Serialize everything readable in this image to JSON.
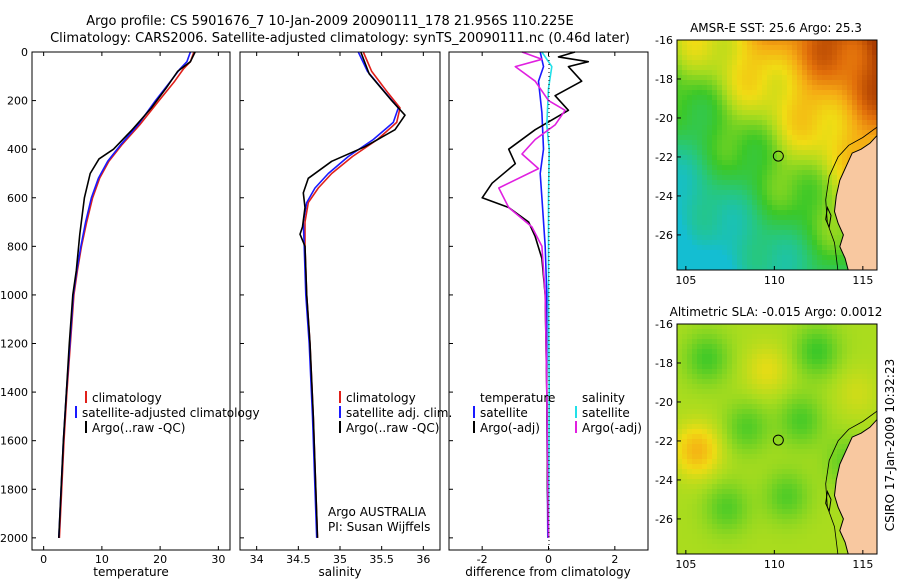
{
  "title_line1": "Argo profile: CS 5901676_7 10-Jan-2009 20090111_178 21.956S 110.225E",
  "title_line2": "Climatology: CARS2006. Satellite-adjusted climatology: synTS_20090111.nc (0.46d later)",
  "side_label": "CSIRO 17-Jan-2009 10:32:23",
  "colors": {
    "climatology": "#e0201a",
    "satellite": "#1a1aff",
    "argo": "#000000",
    "cyan": "#22e0e8",
    "magenta": "#e020e0",
    "land": "#f8c8a0"
  },
  "chart_data": [
    {
      "type": "line",
      "id": "temperature",
      "xlabel": "temperature",
      "ylabel": "",
      "xlim": [
        -2,
        32
      ],
      "ylim": [
        2050,
        0
      ],
      "xticks": [
        "0",
        "10",
        "20",
        "30"
      ],
      "xtick_values": [
        0,
        10,
        20,
        30
      ],
      "yticks": [
        "0",
        "200",
        "400",
        "600",
        "800",
        "1000",
        "1200",
        "1400",
        "1600",
        "1800",
        "2000"
      ],
      "ytick_values": [
        0,
        200,
        400,
        600,
        800,
        1000,
        1200,
        1400,
        1600,
        1800,
        2000
      ],
      "legend": [
        "climatology",
        "satellite-adjusted climatology",
        "Argo(..raw -QC)"
      ],
      "series": [
        {
          "name": "climatology",
          "color": "climatology",
          "points": [
            [
              25.8,
              0
            ],
            [
              25.2,
              40
            ],
            [
              24,
              70
            ],
            [
              22.5,
              120
            ],
            [
              19.8,
              200
            ],
            [
              16.5,
              300
            ],
            [
              13.5,
              380
            ],
            [
              11.2,
              450
            ],
            [
              9.6,
              520
            ],
            [
              8.4,
              600
            ],
            [
              7.4,
              700
            ],
            [
              6.5,
              800
            ],
            [
              5.8,
              900
            ],
            [
              5.2,
              1000
            ],
            [
              4.6,
              1200
            ],
            [
              4.0,
              1400
            ],
            [
              3.5,
              1600
            ],
            [
              3.1,
              1800
            ],
            [
              2.7,
              2000
            ]
          ]
        },
        {
          "name": "satellite-adjusted climatology",
          "color": "satellite",
          "points": [
            [
              25.2,
              0
            ],
            [
              24.6,
              40
            ],
            [
              23.4,
              70
            ],
            [
              21.8,
              120
            ],
            [
              19.2,
              200
            ],
            [
              16.2,
              300
            ],
            [
              13.3,
              380
            ],
            [
              11.0,
              450
            ],
            [
              9.4,
              520
            ],
            [
              8.2,
              600
            ],
            [
              7.2,
              700
            ],
            [
              6.4,
              800
            ],
            [
              5.7,
              900
            ],
            [
              5.1,
              1000
            ],
            [
              4.5,
              1200
            ],
            [
              3.9,
              1400
            ],
            [
              3.4,
              1600
            ],
            [
              3.0,
              1800
            ],
            [
              2.6,
              2000
            ]
          ]
        },
        {
          "name": "Argo(..raw -QC)",
          "color": "argo",
          "points": [
            [
              26.0,
              0
            ],
            [
              25.2,
              40
            ],
            [
              23.0,
              80
            ],
            [
              21.0,
              150
            ],
            [
              18.5,
              230
            ],
            [
              15.2,
              320
            ],
            [
              12.0,
              400
            ],
            [
              9.5,
              440
            ],
            [
              8.0,
              500
            ],
            [
              7.0,
              600
            ],
            [
              6.2,
              750
            ],
            [
              5.6,
              900
            ],
            [
              5.0,
              1000
            ],
            [
              4.4,
              1200
            ],
            [
              3.9,
              1400
            ],
            [
              3.4,
              1600
            ],
            [
              3.0,
              1800
            ],
            [
              2.6,
              2000
            ]
          ]
        }
      ]
    },
    {
      "type": "line",
      "id": "salinity",
      "xlabel": "salinity",
      "xlim": [
        33.8,
        36.2
      ],
      "ylim": [
        2050,
        0
      ],
      "xticks": [
        "34",
        "34.5",
        "35",
        "35.5",
        "36"
      ],
      "xtick_values": [
        34,
        34.5,
        35,
        35.5,
        36
      ],
      "legend": [
        "climatology",
        "satellite adj. clim.",
        "Argo(..raw -QC)"
      ],
      "annotation_lines": [
        "Argo AUSTRALIA",
        "PI: Susan Wijffels"
      ],
      "series": [
        {
          "name": "climatology",
          "color": "climatology",
          "points": [
            [
              35.28,
              0
            ],
            [
              35.38,
              80
            ],
            [
              35.58,
              170
            ],
            [
              35.72,
              230
            ],
            [
              35.68,
              290
            ],
            [
              35.45,
              360
            ],
            [
              35.15,
              430
            ],
            [
              34.9,
              500
            ],
            [
              34.74,
              560
            ],
            [
              34.62,
              620
            ],
            [
              34.58,
              700
            ],
            [
              34.58,
              800
            ],
            [
              34.6,
              1000
            ],
            [
              34.64,
              1200
            ],
            [
              34.68,
              1500
            ],
            [
              34.71,
              1800
            ],
            [
              34.73,
              2000
            ]
          ]
        },
        {
          "name": "satellite adj. clim.",
          "color": "satellite",
          "points": [
            [
              35.22,
              0
            ],
            [
              35.33,
              80
            ],
            [
              35.55,
              170
            ],
            [
              35.7,
              230
            ],
            [
              35.64,
              290
            ],
            [
              35.4,
              360
            ],
            [
              35.1,
              430
            ],
            [
              34.86,
              500
            ],
            [
              34.7,
              560
            ],
            [
              34.6,
              620
            ],
            [
              34.56,
              700
            ],
            [
              34.57,
              800
            ],
            [
              34.59,
              1000
            ],
            [
              34.63,
              1200
            ],
            [
              34.67,
              1500
            ],
            [
              34.7,
              1800
            ],
            [
              34.72,
              2000
            ]
          ]
        },
        {
          "name": "Argo(..raw -QC)",
          "color": "argo",
          "points": [
            [
              35.25,
              0
            ],
            [
              35.35,
              90
            ],
            [
              35.62,
              200
            ],
            [
              35.78,
              260
            ],
            [
              35.66,
              320
            ],
            [
              35.3,
              390
            ],
            [
              34.9,
              450
            ],
            [
              34.62,
              520
            ],
            [
              34.56,
              580
            ],
            [
              34.58,
              640
            ],
            [
              34.55,
              720
            ],
            [
              34.52,
              750
            ],
            [
              34.58,
              800
            ],
            [
              34.6,
              1000
            ],
            [
              34.64,
              1200
            ],
            [
              34.68,
              1500
            ],
            [
              34.71,
              1800
            ],
            [
              34.73,
              2000
            ]
          ]
        }
      ]
    },
    {
      "type": "line",
      "id": "difference",
      "xlabel": "difference from climatology",
      "xlim": [
        -3,
        3
      ],
      "ylim": [
        2050,
        0
      ],
      "xticks": [
        "-2",
        "0",
        "2"
      ],
      "xtick_values": [
        -2,
        0,
        2
      ],
      "legend_left": [
        "temperature",
        "satellite",
        "Argo(-adj)"
      ],
      "legend_right": [
        "salinity",
        "satellite",
        "Argo(-adj)"
      ],
      "series": [
        {
          "name": "temperature satellite",
          "color": "satellite",
          "points": [
            [
              -0.25,
              0
            ],
            [
              -0.15,
              60
            ],
            [
              -0.3,
              120
            ],
            [
              -0.2,
              250
            ],
            [
              -0.15,
              400
            ],
            [
              -0.25,
              500
            ],
            [
              -0.2,
              600
            ],
            [
              -0.1,
              800
            ],
            [
              -0.05,
              1000
            ],
            [
              -0.05,
              1400
            ],
            [
              -0.03,
              1800
            ],
            [
              -0.02,
              2000
            ]
          ]
        },
        {
          "name": "temperature Argo(-adj)",
          "color": "argo",
          "points": [
            [
              0.8,
              0
            ],
            [
              0.3,
              20
            ],
            [
              1.2,
              40
            ],
            [
              0.6,
              60
            ],
            [
              1.0,
              120
            ],
            [
              0.2,
              180
            ],
            [
              0.6,
              240
            ],
            [
              -0.4,
              320
            ],
            [
              -1.2,
              400
            ],
            [
              -1.0,
              460
            ],
            [
              -1.7,
              540
            ],
            [
              -2.0,
              600
            ],
            [
              -1.2,
              640
            ],
            [
              -0.6,
              700
            ],
            [
              -0.4,
              760
            ],
            [
              -0.2,
              850
            ],
            [
              -0.1,
              1000
            ],
            [
              -0.05,
              1400
            ],
            [
              -0.03,
              1800
            ],
            [
              0.0,
              2000
            ]
          ]
        },
        {
          "name": "salinity satellite",
          "color": "cyan",
          "points": [
            [
              -0.2,
              0
            ],
            [
              0.1,
              60
            ],
            [
              0.0,
              150
            ],
            [
              -0.05,
              300
            ],
            [
              0.02,
              400
            ],
            [
              0.0,
              600
            ],
            [
              0.0,
              1000
            ],
            [
              0.02,
              1400
            ],
            [
              0.01,
              1800
            ],
            [
              0.0,
              2000
            ]
          ]
        },
        {
          "name": "salinity Argo(-adj)",
          "color": "magenta",
          "points": [
            [
              -0.8,
              0
            ],
            [
              -0.2,
              30
            ],
            [
              -1.0,
              60
            ],
            [
              -0.4,
              120
            ],
            [
              0.0,
              200
            ],
            [
              0.5,
              240
            ],
            [
              0.2,
              300
            ],
            [
              -0.4,
              360
            ],
            [
              -0.8,
              420
            ],
            [
              -0.3,
              480
            ],
            [
              -1.5,
              560
            ],
            [
              -1.2,
              640
            ],
            [
              -0.5,
              720
            ],
            [
              -0.2,
              800
            ],
            [
              -0.1,
              1000
            ],
            [
              -0.05,
              1400
            ],
            [
              -0.02,
              1800
            ],
            [
              0.0,
              2000
            ]
          ]
        }
      ]
    },
    {
      "type": "heatmap",
      "id": "sst-map",
      "title": "AMSR-E SST: 25.6  Argo: 25.3",
      "xticks": [
        "105",
        "110",
        "115"
      ],
      "xtick_values": [
        105,
        110,
        115
      ],
      "yticks": [
        "-16",
        "-18",
        "-20",
        "-22",
        "-24",
        "-26"
      ],
      "ytick_values": [
        -16,
        -18,
        -20,
        -22,
        -24,
        -26
      ],
      "xlim": [
        104.5,
        115.8
      ],
      "ylim": [
        -27.8,
        -16
      ],
      "argo_position": [
        110.225,
        -21.956
      ]
    },
    {
      "type": "heatmap",
      "id": "sla-map",
      "title": "Altimetric SLA: -0.015  Argo: 0.0012",
      "xticks": [
        "105",
        "110",
        "115"
      ],
      "xtick_values": [
        105,
        110,
        115
      ],
      "yticks": [
        "-16",
        "-18",
        "-20",
        "-22",
        "-24",
        "-26"
      ],
      "ytick_values": [
        -16,
        -18,
        -20,
        -22,
        -24,
        -26
      ],
      "xlim": [
        104.5,
        115.8
      ],
      "ylim": [
        -27.8,
        -16
      ],
      "argo_position": [
        110.225,
        -21.956
      ]
    }
  ]
}
